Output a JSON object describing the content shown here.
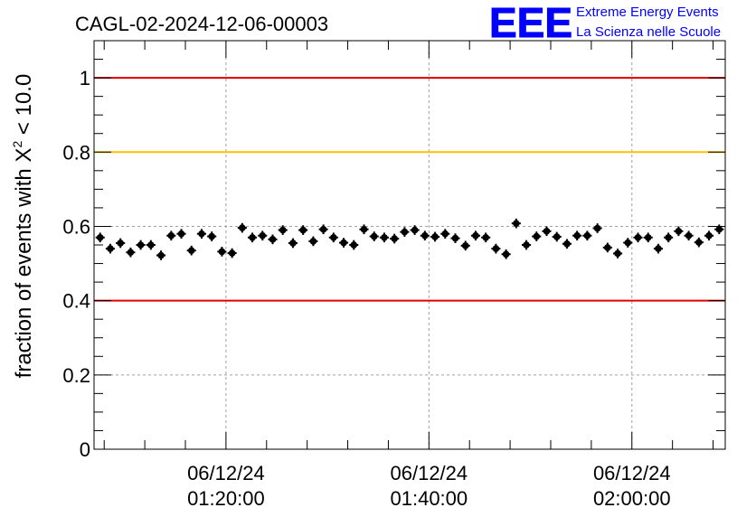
{
  "chart_data": {
    "type": "scatter",
    "title": "CAGL-02-2024-12-06-00003",
    "ylabel": {
      "prefix": "fraction of events with ",
      "symbol": "X",
      "superscript": "2",
      "suffix": " < 10.0"
    },
    "xlabel": "",
    "ylim": [
      0,
      1.1
    ],
    "yticks": [
      {
        "value": 0,
        "label": "0"
      },
      {
        "value": 0.2,
        "label": "0.2"
      },
      {
        "value": 0.4,
        "label": "0.4"
      },
      {
        "value": 0.6,
        "label": "0.6"
      },
      {
        "value": 0.8,
        "label": "0.8"
      },
      {
        "value": 1.0,
        "label": "1"
      }
    ],
    "xlim_minutes": [
      67,
      129.2
    ],
    "xticks": [
      {
        "minute": 80,
        "date": "06/12/24",
        "time": "01:20:00"
      },
      {
        "minute": 100,
        "date": "06/12/24",
        "time": "01:40:00"
      },
      {
        "minute": 120,
        "date": "06/12/24",
        "time": "02:00:00"
      }
    ],
    "grid": true,
    "reference_lines": [
      {
        "y": 1.0,
        "color": "#e00000"
      },
      {
        "y": 0.8,
        "color": "#ffc000"
      },
      {
        "y": 0.4,
        "color": "#e00000"
      }
    ],
    "marker_color": "#000000",
    "series": [
      {
        "x_minutes": [
          67.6,
          68.6,
          69.6,
          70.6,
          71.6,
          72.6,
          73.6,
          74.6,
          75.6,
          76.6,
          77.6,
          78.6,
          79.6,
          80.6,
          81.6,
          82.6,
          83.6,
          84.6,
          85.6,
          86.6,
          87.6,
          88.6,
          89.6,
          90.6,
          91.6,
          92.6,
          93.6,
          94.6,
          95.6,
          96.6,
          97.6,
          98.6,
          99.6,
          100.6,
          101.6,
          102.6,
          103.6,
          104.6,
          105.6,
          106.6,
          107.6,
          108.6,
          109.6,
          110.6,
          111.6,
          112.6,
          113.6,
          114.6,
          115.6,
          116.6,
          117.6,
          118.6,
          119.6,
          120.6,
          121.6,
          122.6,
          123.6,
          124.6,
          125.6,
          126.6,
          127.6,
          128.6
        ],
        "y": [
          0.57,
          0.54,
          0.555,
          0.53,
          0.55,
          0.55,
          0.522,
          0.575,
          0.58,
          0.535,
          0.58,
          0.573,
          0.532,
          0.528,
          0.596,
          0.57,
          0.575,
          0.565,
          0.59,
          0.555,
          0.59,
          0.56,
          0.592,
          0.57,
          0.556,
          0.55,
          0.592,
          0.573,
          0.57,
          0.567,
          0.585,
          0.59,
          0.575,
          0.572,
          0.58,
          0.568,
          0.548,
          0.575,
          0.57,
          0.54,
          0.525,
          0.608,
          0.55,
          0.573,
          0.587,
          0.572,
          0.553,
          0.575,
          0.575,
          0.595,
          0.543,
          0.527,
          0.556,
          0.57,
          0.57,
          0.54,
          0.57,
          0.587,
          0.575,
          0.557,
          0.575,
          0.592
        ],
        "yerr": 0.013,
        "xerr": 0.45
      }
    ]
  },
  "logo": {
    "mark": "EEE",
    "line1": "Extreme Energy Events",
    "line2": "La Scienza nelle Scuole",
    "color": "#0000ff"
  }
}
